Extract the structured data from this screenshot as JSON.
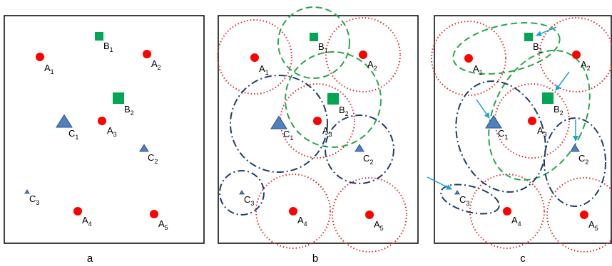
{
  "panels": [
    {
      "caption": "a"
    },
    {
      "caption": "b"
    },
    {
      "caption": "c"
    }
  ],
  "points": [
    {
      "id": "A1",
      "letter": "A",
      "index": "1",
      "kind": "circle"
    },
    {
      "id": "A2",
      "letter": "A",
      "index": "2",
      "kind": "circle"
    },
    {
      "id": "A3",
      "letter": "A",
      "index": "3",
      "kind": "circle"
    },
    {
      "id": "A4",
      "letter": "A",
      "index": "4",
      "kind": "circle"
    },
    {
      "id": "A5",
      "letter": "A",
      "index": "5",
      "kind": "circle"
    },
    {
      "id": "B1",
      "letter": "B",
      "index": "1",
      "kind": "square"
    },
    {
      "id": "B2",
      "letter": "B",
      "index": "2",
      "kind": "square"
    },
    {
      "id": "C1",
      "letter": "C",
      "index": "1",
      "kind": "triangle"
    },
    {
      "id": "C2",
      "letter": "C",
      "index": "2",
      "kind": "triangle"
    },
    {
      "id": "C3",
      "letter": "C",
      "index": "3",
      "kind": "triangle"
    }
  ],
  "colors": {
    "A": "#ff0000",
    "B": "#00a651",
    "C": "#4f81bd",
    "A_range": "#e0262a",
    "B_range": "#2aa64a",
    "C_range": "#1f3d6b",
    "arrow": "#1ea0d8",
    "frame": "#000000"
  }
}
